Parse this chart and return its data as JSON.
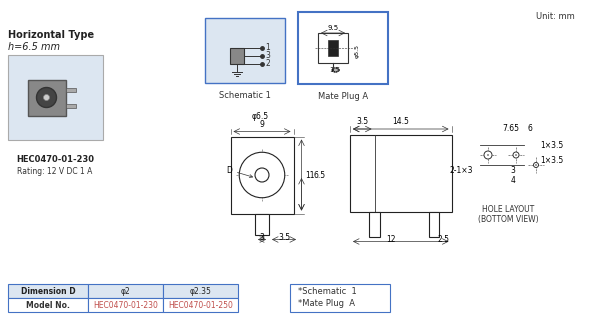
{
  "title": "",
  "bg_color": "#ffffff",
  "unit_text": "Unit: mm",
  "left_title1": "Horizontal Type",
  "left_title2": "h=6.5 mm",
  "model_name": "HEC0470-01-230",
  "rating": "Rating: 12 V DC 1 A",
  "schematic_label": "Schematic 1",
  "mate_plug_label": "Mate Plug A",
  "hole_layout_label": "HOLE LAYOUT\n(BOTTOM VIEW)",
  "table_headers": [
    "Dimension D",
    "φ2",
    "φ2.35"
  ],
  "table_row": [
    "Model No.",
    "HEC0470-01-230",
    "HEC0470-01-250"
  ],
  "note_lines": [
    "*Schematic  1",
    "*Mate Plug  A"
  ],
  "accent_color": "#4472c4",
  "orange_color": "#c0504d",
  "light_blue_bg": "#dce6f1"
}
